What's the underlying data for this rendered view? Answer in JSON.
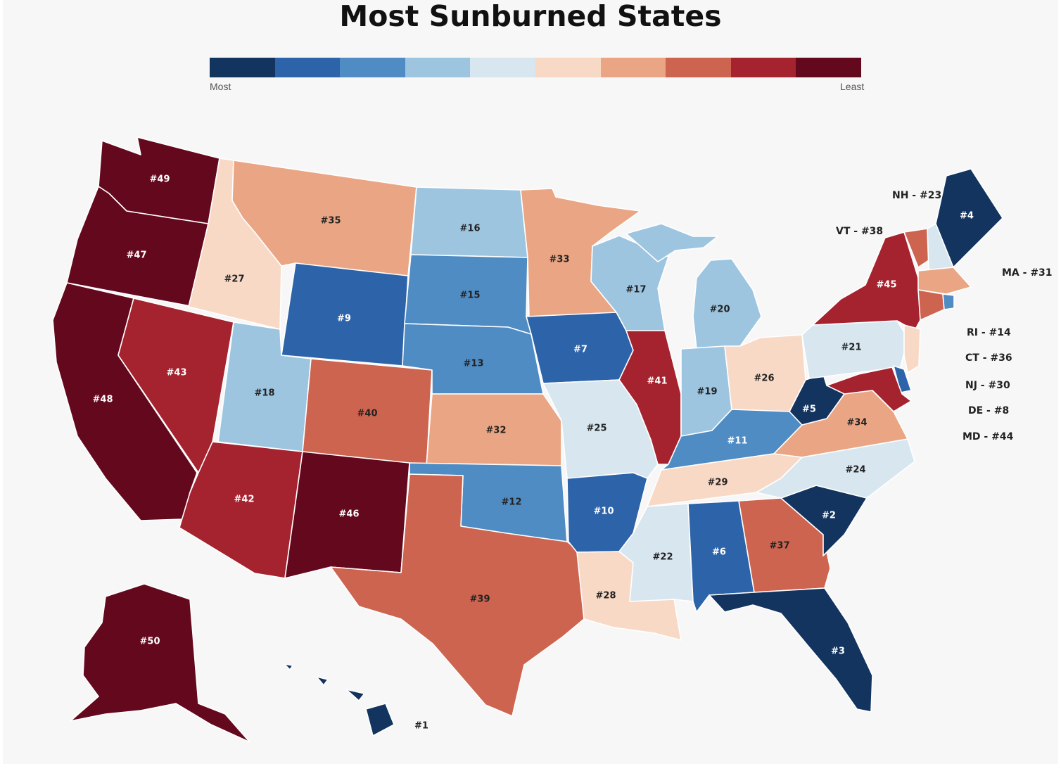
{
  "title": "Most Sunburned States",
  "legend": {
    "min_label": "Most",
    "max_label": "Least",
    "colors": [
      "#13345f",
      "#2d63a9",
      "#4f8cc4",
      "#9dc5e0",
      "#d8e6f0",
      "#f8d9c6",
      "#eaa684",
      "#cd6450",
      "#a5232e",
      "#64091d"
    ]
  },
  "states": {
    "wa": "#49",
    "or": "#47",
    "ca": "#48",
    "id": "#27",
    "nv": "#43",
    "mt": "#35",
    "wy": "#9",
    "ut": "#18",
    "az": "#42",
    "co": "#40",
    "nm": "#46",
    "nd": "#16",
    "sd": "#15",
    "ne": "#13",
    "ks": "#32",
    "ok": "#12",
    "tx": "#39",
    "mn": "#33",
    "ia": "#7",
    "mo": "#25",
    "ar": "#10",
    "la": "#28",
    "wi": "#17",
    "il": "#41",
    "mi": "#20",
    "in": "#19",
    "oh": "#26",
    "ky": "#11",
    "tn": "#29",
    "ms": "#22",
    "al": "#6",
    "ga": "#37",
    "fl": "#3",
    "sc": "#2",
    "nc": "#24",
    "va": "#34",
    "wv": "#5",
    "pa": "#21",
    "ny": "#45",
    "me": "#4",
    "ak": "#50",
    "hi": "#1"
  },
  "small_states": {
    "nh": "NH - #23",
    "vt": "VT - #38",
    "ma": "MA - #31",
    "ri": "RI - #14",
    "ct": "CT - #36",
    "nj": "NJ - #30",
    "de": "DE - #8",
    "md": "MD - #44"
  }
}
